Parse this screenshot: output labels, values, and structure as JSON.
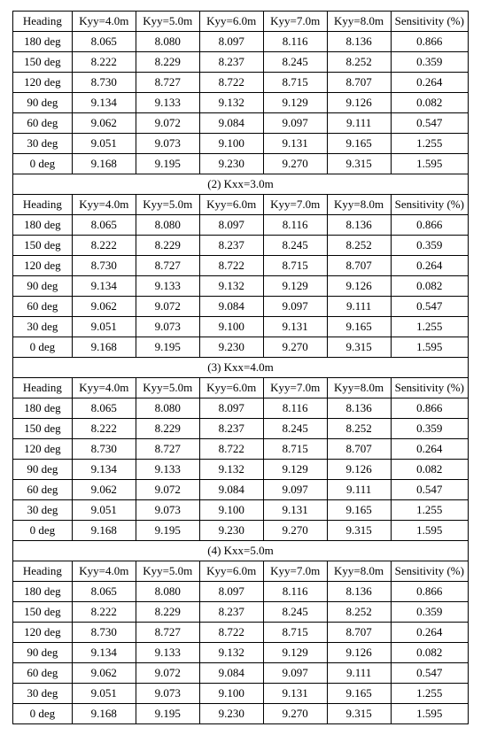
{
  "columns": {
    "heading": "Heading",
    "k4": "Kyy=4.0m",
    "k5": "Kyy=5.0m",
    "k6": "Kyy=6.0m",
    "k7": "Kyy=7.0m",
    "k8": "Kyy=8.0m",
    "sens": "Sensitivity (%)"
  },
  "section_titles": {
    "s2": "(2) Kxx=3.0m",
    "s3": "(3) Kxx=4.0m",
    "s4": "(4) Kxx=5.0m"
  },
  "rows": {
    "r180": {
      "h": "180 deg",
      "k4": "8.065",
      "k5": "8.080",
      "k6": "8.097",
      "k7": "8.116",
      "k8": "8.136",
      "s": "0.866"
    },
    "r150": {
      "h": "150 deg",
      "k4": "8.222",
      "k5": "8.229",
      "k6": "8.237",
      "k7": "8.245",
      "k8": "8.252",
      "s": "0.359"
    },
    "r120": {
      "h": "120 deg",
      "k4": "8.730",
      "k5": "8.727",
      "k6": "8.722",
      "k7": "8.715",
      "k8": "8.707",
      "s": "0.264"
    },
    "r90": {
      "h": "90 deg",
      "k4": "9.134",
      "k5": "9.133",
      "k6": "9.132",
      "k7": "9.129",
      "k8": "9.126",
      "s": "0.082"
    },
    "r60": {
      "h": "60 deg",
      "k4": "9.062",
      "k5": "9.072",
      "k6": "9.084",
      "k7": "9.097",
      "k8": "9.111",
      "s": "0.547"
    },
    "r30": {
      "h": "30 deg",
      "k4": "9.051",
      "k5": "9.073",
      "k6": "9.100",
      "k7": "9.131",
      "k8": "9.165",
      "s": "1.255"
    },
    "r0": {
      "h": "0 deg",
      "k4": "9.168",
      "k5": "9.195",
      "k6": "9.230",
      "k7": "9.270",
      "k8": "9.315",
      "s": "1.595"
    }
  },
  "style": {
    "font_family": "Times New Roman",
    "font_size_pt": 10,
    "border_color": "#000000",
    "background_color": "#ffffff",
    "text_color": "#000000",
    "cell_align": "center",
    "column_widths_pct": [
      13,
      14,
      14,
      14,
      14,
      14,
      17
    ]
  }
}
